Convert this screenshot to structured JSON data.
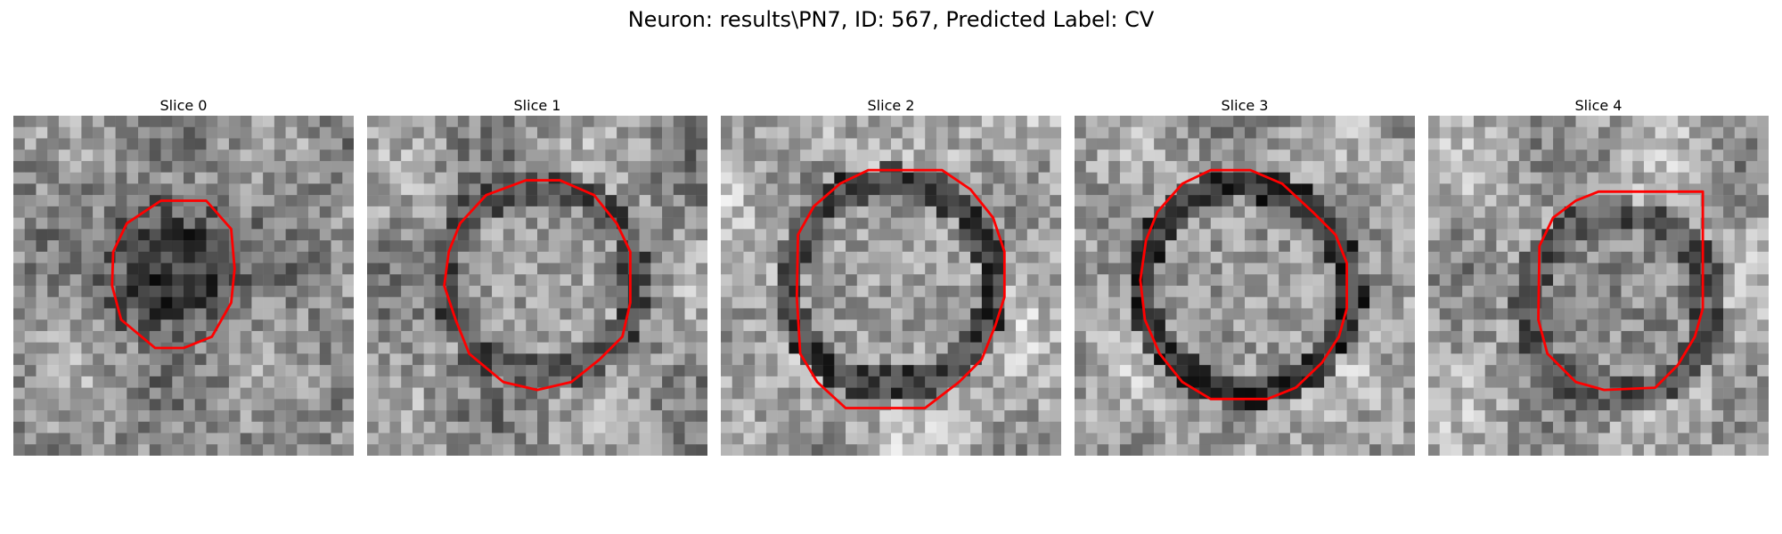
{
  "figure": {
    "suptitle": "Neuron: results\\PN7, ID: 567, Predicted Label: CV",
    "contour_color": "#ff0000",
    "colormap": "gray"
  },
  "panels": [
    {
      "title": "Slice 0"
    },
    {
      "title": "Slice 1"
    },
    {
      "title": "Slice 2"
    },
    {
      "title": "Slice 3"
    },
    {
      "title": "Slice 4"
    }
  ]
}
